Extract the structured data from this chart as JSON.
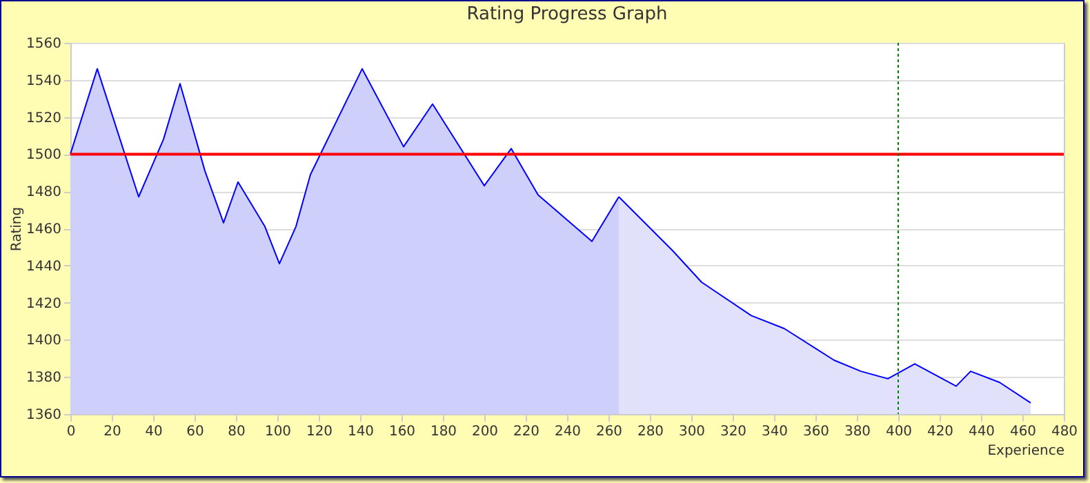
{
  "chart_data": {
    "type": "area",
    "title": "Rating Progress Graph",
    "xlabel": "Experience",
    "ylabel": "Rating",
    "series": [
      {
        "color": "#cfcffb",
        "x": [
          0,
          13,
          24,
          33,
          45,
          53,
          65,
          74,
          81,
          94,
          101,
          109,
          116,
          141,
          161,
          175,
          200,
          213,
          226,
          252,
          265
        ],
        "values": [
          1500,
          1546,
          1508,
          1477,
          1508,
          1538,
          1491,
          1463,
          1485,
          1461,
          1441,
          1461,
          1489,
          1546,
          1504,
          1527,
          1483,
          1503,
          1478,
          1453,
          1477
        ]
      },
      {
        "color": "#e1e1fb",
        "x": [
          265,
          291,
          305,
          329,
          345,
          369,
          382,
          395,
          408,
          428,
          435,
          449,
          464
        ],
        "values": [
          1477,
          1448,
          1431,
          1413,
          1406,
          1389,
          1383,
          1379,
          1387,
          1375,
          1383,
          1377,
          1366
        ]
      }
    ],
    "xlim": [
      0,
      480
    ],
    "xticks": [
      0,
      20,
      40,
      60,
      80,
      100,
      120,
      140,
      160,
      180,
      200,
      220,
      240,
      260,
      280,
      300,
      320,
      340,
      360,
      380,
      400,
      420,
      440,
      460,
      480
    ],
    "ylim": [
      1360,
      1560
    ],
    "yticks": [
      1360,
      1380,
      1400,
      1420,
      1440,
      1460,
      1480,
      1500,
      1520,
      1540,
      1560
    ],
    "grid": "y",
    "ref_lines": [
      {
        "axis": "y",
        "value": 1500,
        "color": "#ff0000",
        "line_style": "solid"
      },
      {
        "axis": "x",
        "value": 400,
        "color": "#008000",
        "line_style": "dotted"
      }
    ]
  }
}
